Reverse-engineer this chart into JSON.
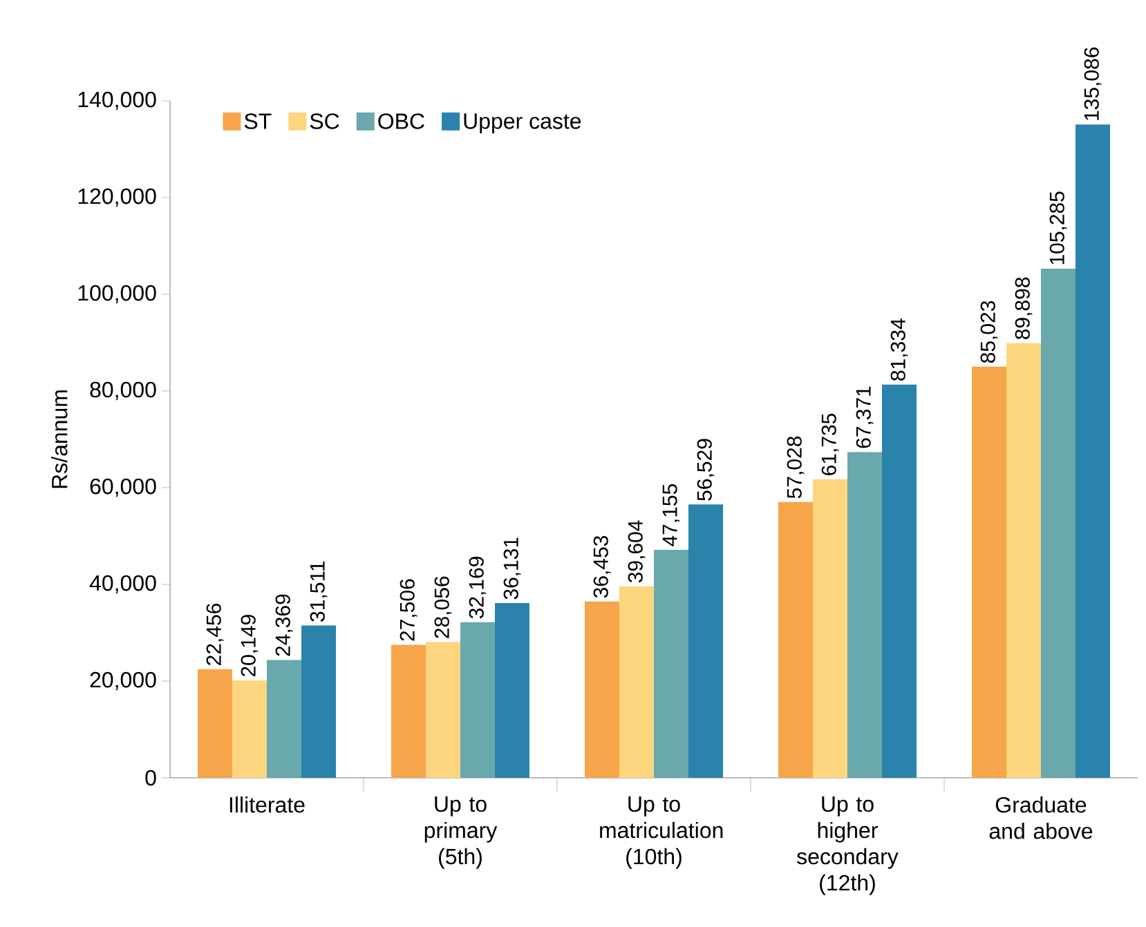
{
  "chart_data": {
    "type": "bar",
    "ylabel": "Rs/annum",
    "categories": [
      "Illiterate",
      "Up to primary (5th)",
      "Up to matriculation (10th)",
      "Up to higher secondary (12th)",
      "Graduate and above"
    ],
    "series": [
      {
        "name": "ST",
        "color": "#f7a54a",
        "values": [
          22456,
          27506,
          36453,
          57028,
          85023
        ],
        "value_labels": [
          "22,456",
          "27,506",
          "36,453",
          "57,028",
          "85,023"
        ]
      },
      {
        "name": "SC",
        "color": "#fdd57e",
        "values": [
          20149,
          28056,
          39604,
          61735,
          89898
        ],
        "value_labels": [
          "20,149",
          "28,056",
          "39,604",
          "61,735",
          "89,898"
        ]
      },
      {
        "name": "OBC",
        "color": "#69a8ad",
        "values": [
          24369,
          32169,
          47155,
          67371,
          105285
        ],
        "value_labels": [
          "24,369",
          "32,169",
          "47,155",
          "67,371",
          "105,285"
        ]
      },
      {
        "name": "Upper caste",
        "color": "#2a83aa",
        "values": [
          31511,
          36131,
          56529,
          81334,
          135086
        ],
        "value_labels": [
          "31,511",
          "36,131",
          "56,529",
          "81,334",
          "135,086"
        ]
      }
    ],
    "ylim": [
      0,
      140000
    ],
    "yticks": [
      {
        "value": 0,
        "label": "0"
      },
      {
        "value": 20000,
        "label": "20,000"
      },
      {
        "value": 40000,
        "label": "40,000"
      },
      {
        "value": 60000,
        "label": "60,000"
      },
      {
        "value": 80000,
        "label": "80,000"
      },
      {
        "value": 100000,
        "label": "100,000"
      },
      {
        "value": 120000,
        "label": "120,000"
      },
      {
        "value": 140000,
        "label": "140,000"
      }
    ],
    "grid": false,
    "legend": "top left"
  }
}
